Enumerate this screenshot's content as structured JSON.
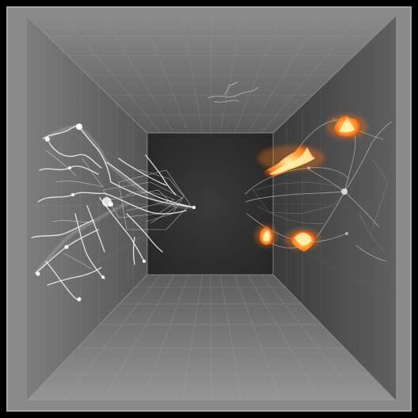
{
  "scene": {
    "subject": "room-with-web-structures",
    "palette": {
      "border": "#000000",
      "frame": "#8a8a8a",
      "ceiling": "#7b7b7b",
      "floor": "#8c8c8c",
      "left_wall": "#6e6e6e",
      "right_wall": "#4d4d4d",
      "back_wall": "#303030",
      "web": "#eeeeee",
      "fire_core": "#fff2b0",
      "fire_mid": "#ff8a1a",
      "fire_outer": "#d03a08"
    },
    "elements": {
      "left_web": "white-tangled-web",
      "right_web": "faint-web-with-fires",
      "fires": [
        "fire-top",
        "fire-mid",
        "fire-low-left",
        "fire-low-right"
      ]
    }
  }
}
